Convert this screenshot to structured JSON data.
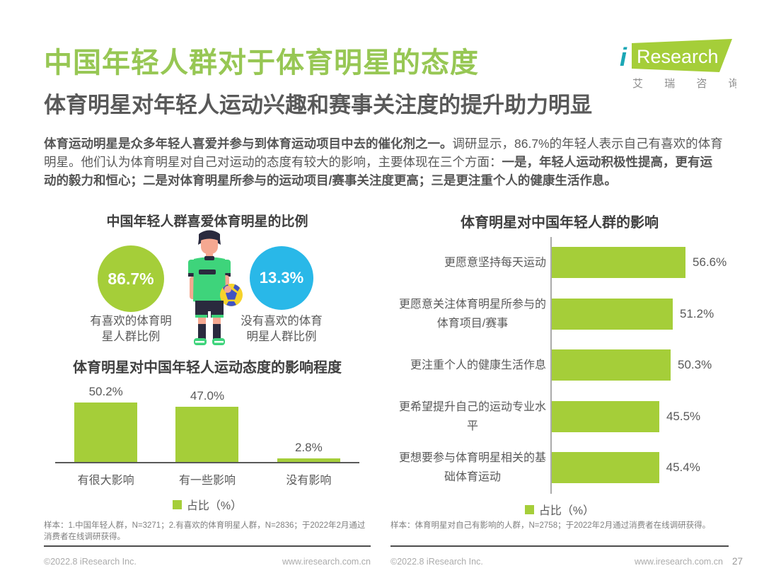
{
  "header": {
    "title": "中国年轻人群对于体育明星的态度",
    "subtitle": "体育明星对年轻人运动兴趣和赛事关注度的提升助力明显",
    "logo": {
      "brand_i": "i",
      "brand_rest": "Research",
      "subtext": "艾 瑞 咨 询"
    }
  },
  "intro": {
    "seg1": "体育运动明星是众多年轻人喜爱并参与到体育运动项目中去的催化剂之一。",
    "seg2": "调研显示，86.7%的年轻人表示自己有喜欢的体育明星。他们认为体育明星对自己对运动的态度有较大的影响，主要体现在三个方面：",
    "seg3": "一是，年轻人运动积极性提高，更有运动的毅力和恒心；二是对体育明星所参与的运动项目/赛事关注度更高；三是更注重个人的健康生活作息。"
  },
  "colors": {
    "chart_green": "#A5CE39",
    "circle_blue": "#29B8E8",
    "title_green": "#97C754",
    "text_dark": "#595959",
    "logo_teal": "#1BA7B5"
  },
  "chart_data": [
    {
      "type": "pie",
      "title": "中国年轻人群喜爱体育明星的比例",
      "slices": [
        {
          "label": "有喜欢的体育明星人群比例",
          "label_lines": [
            "有喜欢的体育明",
            "星人群比例"
          ],
          "value": 86.7,
          "color": "#A5CE39"
        },
        {
          "label": "没有喜欢的体育明星人群比例",
          "label_lines": [
            "没有喜欢的体育",
            "明星人群比例"
          ],
          "value": 13.3,
          "color": "#29B8E8"
        }
      ]
    },
    {
      "type": "bar",
      "title": "体育明星对中国年轻人运动态度的影响程度",
      "categories": [
        "有很大影响",
        "有一些影响",
        "没有影响"
      ],
      "values": [
        50.2,
        47.0,
        2.8
      ],
      "legend": "占比（%）",
      "ylabel": "",
      "xlabel": "",
      "ylim": [
        0,
        55
      ],
      "grid": false,
      "legend_position": "bottom-center",
      "bar_color": "#A5CE39"
    },
    {
      "type": "bar",
      "orientation": "horizontal",
      "title": "体育明星对中国年轻人群的影响",
      "categories": [
        [
          "更愿意坚持每天运动"
        ],
        [
          "更愿意关注体育明星所参与的",
          "体育项目/赛事"
        ],
        [
          "更注重个人的健康生活作息"
        ],
        [
          "更希望提升自己的运动专业水",
          "平"
        ],
        [
          "更想要参与体育明星相关的基",
          "础体育运动"
        ]
      ],
      "values": [
        56.6,
        51.2,
        50.3,
        45.5,
        45.4
      ],
      "legend": "占比（%）",
      "xlim": [
        0,
        65
      ],
      "grid": false,
      "legend_position": "bottom-center",
      "bar_color": "#A5CE39"
    }
  ],
  "footnotes": {
    "left": "样本：1.中国年轻人群，N=3271；2.有喜欢的体育明星人群，N=2836；于2022年2月通过消费者在线调研获得。",
    "right": "样本：体育明星对自己有影响的人群，N=2758；于2022年2月通过消费者在线调研获得。"
  },
  "footer": {
    "left_copyright": "©2022.8 iResearch Inc.",
    "left_url": "www.iresearch.com.cn",
    "right_copyright": "©2022.8 iResearch Inc.",
    "right_url": "www.iresearch.com.cn",
    "page": "27"
  }
}
